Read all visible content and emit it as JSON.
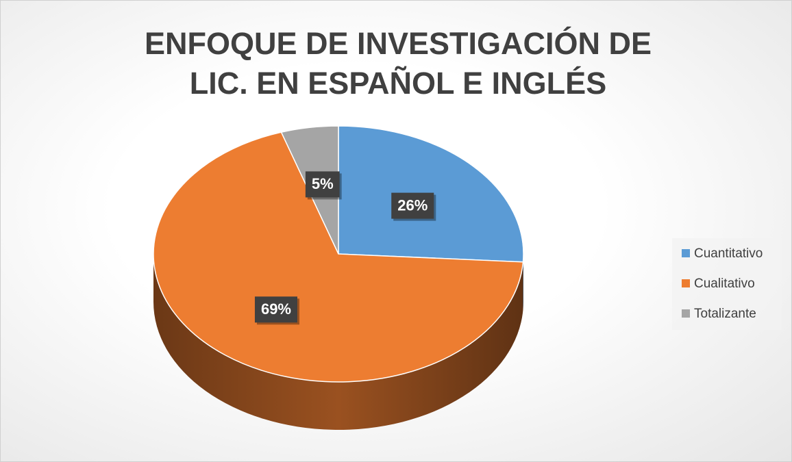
{
  "chart_data": {
    "type": "pie",
    "title": "ENFOQUE DE INVESTIGACIÓN DE LIC. EN ESPAÑOL E INGLÉS",
    "categories": [
      "Cuantitativo",
      "Cualitativo",
      "Totalizante"
    ],
    "values": [
      26,
      69,
      5
    ],
    "value_labels": [
      "26%",
      "69%",
      "5%"
    ],
    "colors": [
      "#5b9bd5",
      "#ed7d31",
      "#a5a5a5"
    ],
    "legend": "right"
  }
}
